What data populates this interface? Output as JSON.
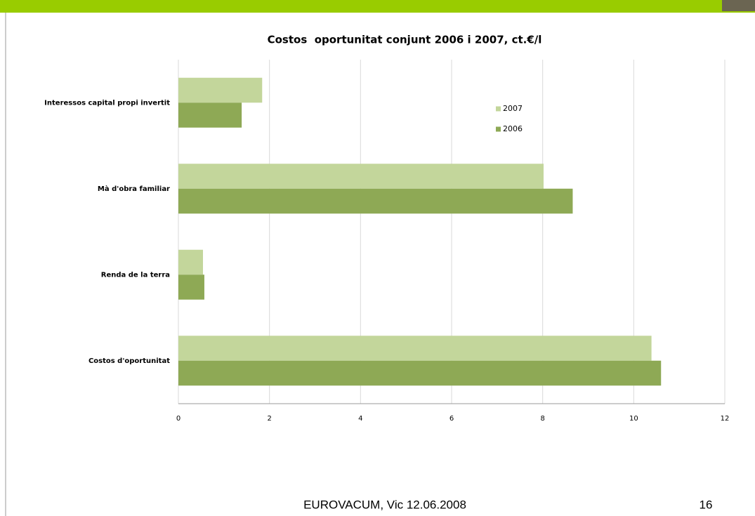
{
  "chart_data": {
    "type": "hbar",
    "title": "Costos  oportunitat conjunt 2006 i 2007, ct.€/l",
    "categories": [
      "Interessos capital propi invertit",
      "Mà d'obra familiar",
      "Renda de la terra",
      "Costos d'oportunitat"
    ],
    "series": [
      {
        "name": "2007",
        "color": "#c3d69b",
        "values": [
          1.84,
          8.02,
          0.54,
          10.39
        ]
      },
      {
        "name": "2006",
        "color": "#8ea955",
        "values": [
          1.39,
          8.66,
          0.57,
          10.6
        ]
      }
    ],
    "xlim": [
      0,
      12
    ],
    "xticks": [
      0,
      2,
      4,
      6,
      8,
      10,
      12
    ],
    "grid": true
  },
  "footer": "EUROVACUM, Vic 12.06.2008",
  "page_number": "16"
}
